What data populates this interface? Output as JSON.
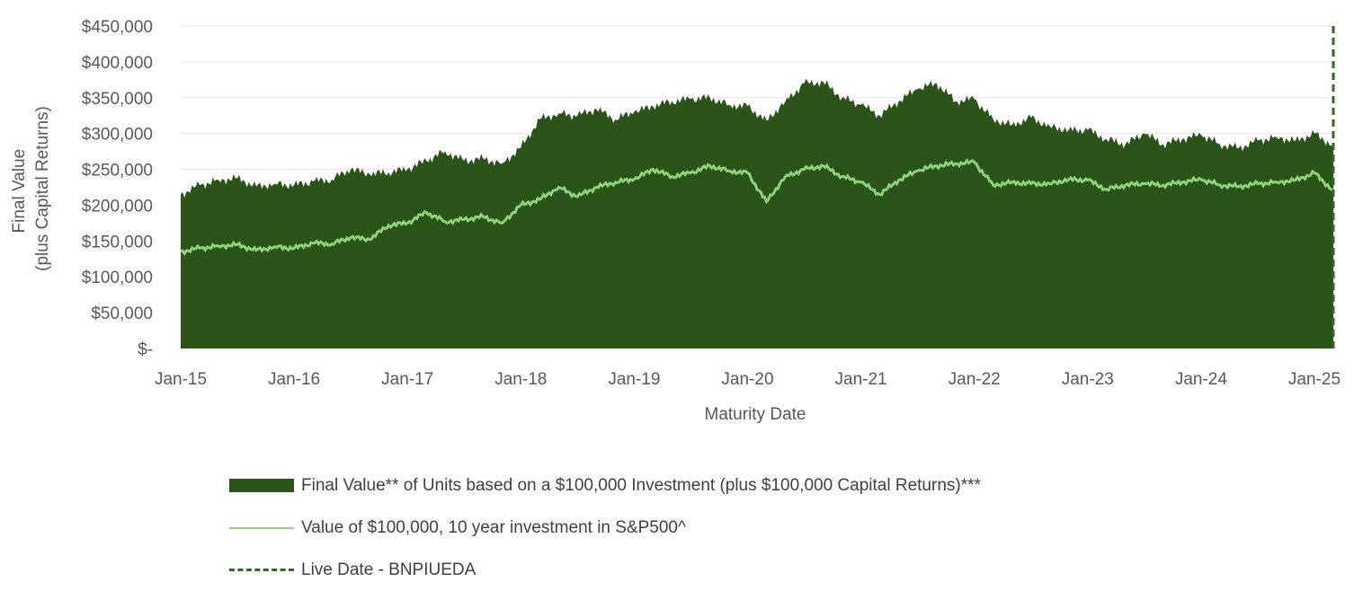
{
  "chart_data": {
    "type": "area",
    "xlabel": "Maturity Date",
    "ylabel_lines": [
      "Final Value",
      "(plus Capital Returns)"
    ],
    "x_ticks": [
      "Jan-15",
      "Jan-16",
      "Jan-17",
      "Jan-18",
      "Jan-19",
      "Jan-20",
      "Jan-21",
      "Jan-22",
      "Jan-23",
      "Jan-24",
      "Jan-25"
    ],
    "y_ticks": [
      "$-",
      "$50,000",
      "$100,000",
      "$150,000",
      "$200,000",
      "$250,000",
      "$300,000",
      "$350,000",
      "$400,000",
      "$450,000"
    ],
    "ylim": [
      0,
      450000
    ],
    "xlim": [
      "2015-01",
      "2025-03"
    ],
    "grid": "horizontal",
    "legend_position": "bottom",
    "series": [
      {
        "name": "Final Value** of Units based on a $100,000 Investment (plus $100,000 Capital Returns)***",
        "kind": "area",
        "color": "#2b5419",
        "x": [
          "2015-01",
          "2015-03",
          "2015-05",
          "2015-07",
          "2015-09",
          "2015-11",
          "2016-01",
          "2016-03",
          "2016-05",
          "2016-07",
          "2016-09",
          "2016-11",
          "2017-01",
          "2017-03",
          "2017-05",
          "2017-07",
          "2017-09",
          "2017-11",
          "2018-01",
          "2018-03",
          "2018-05",
          "2018-07",
          "2018-09",
          "2018-11",
          "2019-01",
          "2019-03",
          "2019-05",
          "2019-07",
          "2019-09",
          "2019-11",
          "2020-01",
          "2020-03",
          "2020-05",
          "2020-07",
          "2020-09",
          "2020-11",
          "2021-01",
          "2021-03",
          "2021-05",
          "2021-07",
          "2021-09",
          "2021-11",
          "2022-01",
          "2022-03",
          "2022-05",
          "2022-07",
          "2022-09",
          "2022-11",
          "2023-01",
          "2023-03",
          "2023-05",
          "2023-07",
          "2023-09",
          "2023-11",
          "2024-01",
          "2024-03",
          "2024-05",
          "2024-07",
          "2024-09",
          "2024-11",
          "2025-01",
          "2025-03"
        ],
        "values": [
          215000,
          228000,
          235000,
          238000,
          226000,
          230000,
          228000,
          233000,
          236000,
          250000,
          243000,
          246000,
          250000,
          262000,
          275000,
          262000,
          265000,
          258000,
          280000,
          320000,
          328000,
          325000,
          334000,
          320000,
          330000,
          338000,
          345000,
          348000,
          350000,
          340000,
          338000,
          318000,
          345000,
          370000,
          372000,
          350000,
          340000,
          325000,
          345000,
          362000,
          370000,
          345000,
          348000,
          320000,
          312000,
          322000,
          310000,
          305000,
          305000,
          292000,
          285000,
          300000,
          285000,
          292000,
          298000,
          285000,
          280000,
          290000,
          295000,
          290000,
          300000,
          283000
        ]
      },
      {
        "name": "Value of $100,000, 10 year investment in S&P500^",
        "kind": "line",
        "color": "#8fd279",
        "x": [
          "2015-01",
          "2015-03",
          "2015-05",
          "2015-07",
          "2015-09",
          "2015-11",
          "2016-01",
          "2016-03",
          "2016-05",
          "2016-07",
          "2016-09",
          "2016-11",
          "2017-01",
          "2017-03",
          "2017-05",
          "2017-07",
          "2017-09",
          "2017-11",
          "2018-01",
          "2018-03",
          "2018-05",
          "2018-07",
          "2018-09",
          "2018-11",
          "2019-01",
          "2019-03",
          "2019-05",
          "2019-07",
          "2019-09",
          "2019-11",
          "2020-01",
          "2020-03",
          "2020-05",
          "2020-07",
          "2020-09",
          "2020-11",
          "2021-01",
          "2021-03",
          "2021-05",
          "2021-07",
          "2021-09",
          "2021-11",
          "2022-01",
          "2022-03",
          "2022-05",
          "2022-07",
          "2022-09",
          "2022-11",
          "2023-01",
          "2023-03",
          "2023-05",
          "2023-07",
          "2023-09",
          "2023-11",
          "2024-01",
          "2024-03",
          "2024-05",
          "2024-07",
          "2024-09",
          "2024-11",
          "2025-01",
          "2025-03"
        ],
        "values": [
          135000,
          140000,
          143000,
          145000,
          137000,
          142000,
          140000,
          147000,
          146000,
          155000,
          152000,
          172000,
          175000,
          190000,
          177000,
          180000,
          184000,
          175000,
          200000,
          208000,
          225000,
          212000,
          225000,
          232000,
          236000,
          250000,
          240000,
          245000,
          255000,
          248000,
          245000,
          205000,
          240000,
          250000,
          255000,
          240000,
          232000,
          215000,
          235000,
          248000,
          255000,
          258000,
          260000,
          228000,
          232000,
          230000,
          230000,
          236000,
          235000,
          222000,
          228000,
          230000,
          228000,
          232000,
          236000,
          228000,
          226000,
          230000,
          232000,
          235000,
          245000,
          220000
        ]
      },
      {
        "name": "Live Date - BNPIUEDA",
        "kind": "vline",
        "color": "#2f6b1e",
        "x": "2025-03"
      }
    ]
  }
}
